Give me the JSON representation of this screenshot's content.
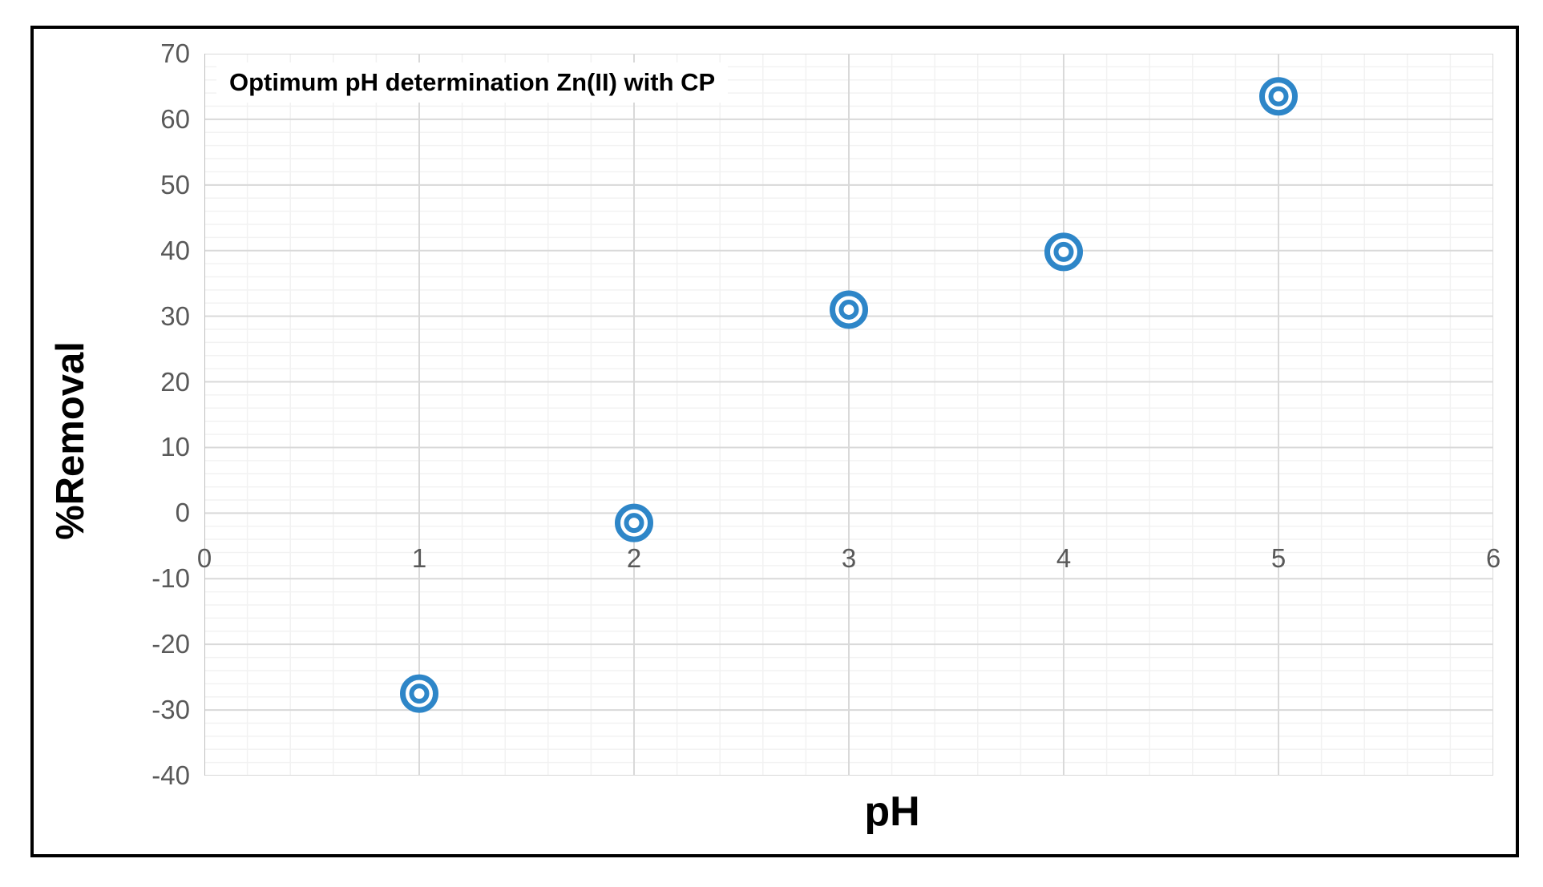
{
  "chart_data": {
    "type": "scatter",
    "title": "Optimum pH determination Zn(II) with CP",
    "xlabel": "pH",
    "ylabel": "%Removal",
    "x": [
      1,
      2,
      3,
      4,
      5
    ],
    "y": [
      -27.5,
      -1.5,
      31,
      39.8,
      63.5
    ],
    "x_axis": {
      "min": 0,
      "max": 6,
      "major_step": 1,
      "minor_step": 0.2,
      "tick_labels": [
        "0",
        "1",
        "2",
        "3",
        "4",
        "5",
        "6"
      ]
    },
    "y_axis": {
      "min": -40,
      "max": 70,
      "major_step": 10,
      "minor_step": 2,
      "tick_labels": [
        "70",
        "60",
        "50",
        "40",
        "30",
        "20",
        "10",
        "0",
        "-10",
        "-20",
        "-30",
        "-40"
      ]
    },
    "grid": "major and minor, both axes",
    "legend": false,
    "marker": {
      "shape": "double-circle",
      "color": "#2E86C8"
    }
  },
  "style": {
    "major_grid_color": "#D9D9D9",
    "minor_grid_color": "#F2F2F2",
    "axis_line_color": "#BFBFBF",
    "tick_label_color": "#595959",
    "title_color": "#000000",
    "figure_border_color": "#000000",
    "background_color": "#FFFFFF"
  }
}
